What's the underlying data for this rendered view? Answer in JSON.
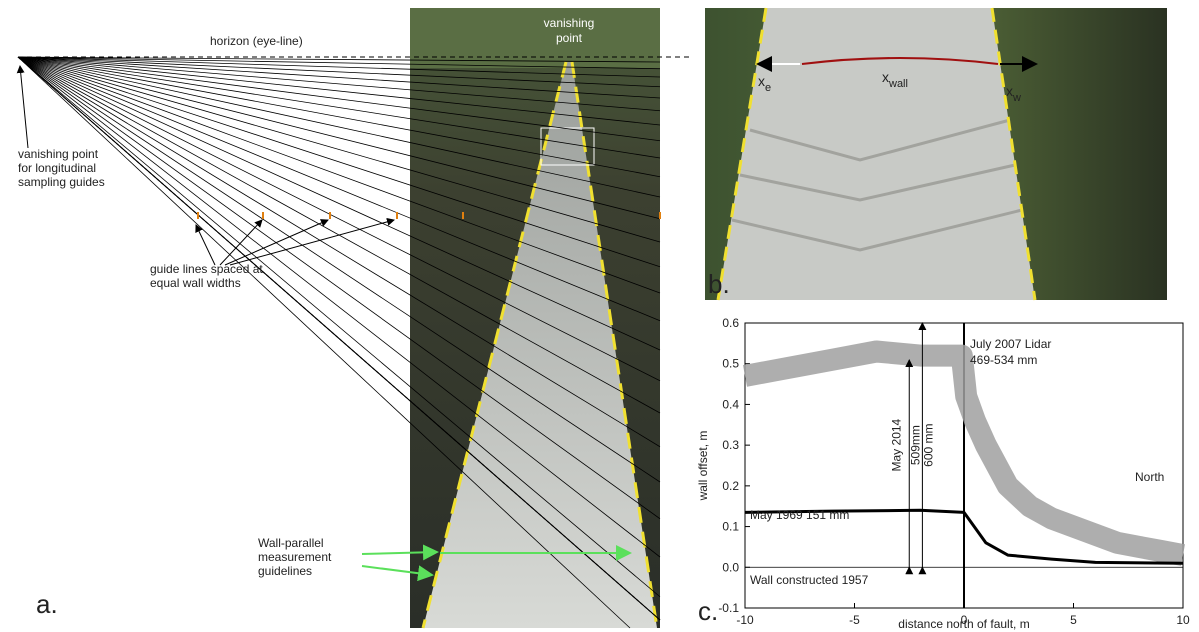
{
  "panel_a": {
    "label": "a.",
    "horizon": "horizon (eye-line)",
    "photo_vanishing": [
      "vanishing",
      "point"
    ],
    "vanishing_note": [
      "vanishing point",
      "for longitudinal",
      "sampling guides"
    ],
    "guide_note": [
      "guide lines spaced at",
      "equal wall widths"
    ],
    "parallel_note": [
      "Wall-parallel",
      "measurement",
      "guidelines"
    ]
  },
  "panel_b": {
    "label": "b.",
    "symbols": [
      {
        "base": "x",
        "sub": "e"
      },
      {
        "base": "x",
        "sub": "wall"
      },
      {
        "base": "x",
        "sub": "w"
      }
    ]
  },
  "panel_c": {
    "label": "c."
  },
  "chart_data": {
    "type": "line",
    "xlabel": "distance north of fault, m",
    "ylabel": "wall offset, m",
    "xlim": [
      -10,
      10
    ],
    "xticks": [
      -10,
      -5,
      0,
      5,
      10
    ],
    "ylim": [
      -0.1,
      0.6
    ],
    "yticks": [
      -0.1,
      {
        "value": 0,
        "label": "0.0"
      },
      0.1,
      0.2,
      0.3,
      0.4,
      0.5,
      0.6
    ],
    "series": [
      {
        "name": "July 2007 Lidar",
        "color": "#a0a0a0",
        "x": [
          -10,
          -8,
          -6,
          -4,
          -2,
          -0.1,
          0.1,
          0.5,
          1,
          2,
          3,
          4,
          5,
          6,
          7,
          8,
          9,
          10
        ],
        "values": [
          0.47,
          0.49,
          0.51,
          0.53,
          0.52,
          0.52,
          0.42,
          0.36,
          0.3,
          0.2,
          0.15,
          0.12,
          0.1,
          0.08,
          0.06,
          0.05,
          0.04,
          0.03
        ]
      },
      {
        "name": "May 1969",
        "color": "#000000",
        "x": [
          -10,
          -6,
          -2,
          0,
          1,
          2,
          4,
          6,
          10
        ],
        "values": [
          0.135,
          0.138,
          0.14,
          0.135,
          0.06,
          0.03,
          0.02,
          0.012,
          0.01
        ]
      }
    ],
    "annotations": [
      "July 2007 Lidar",
      "469-534 mm",
      "May 1969  151 mm",
      "Wall constructed 1957",
      "North",
      "May 2014"
    ],
    "measurements": [
      {
        "value": 0.509,
        "label": "509mm"
      },
      {
        "value": 0.6,
        "label": "600 mm"
      }
    ]
  }
}
